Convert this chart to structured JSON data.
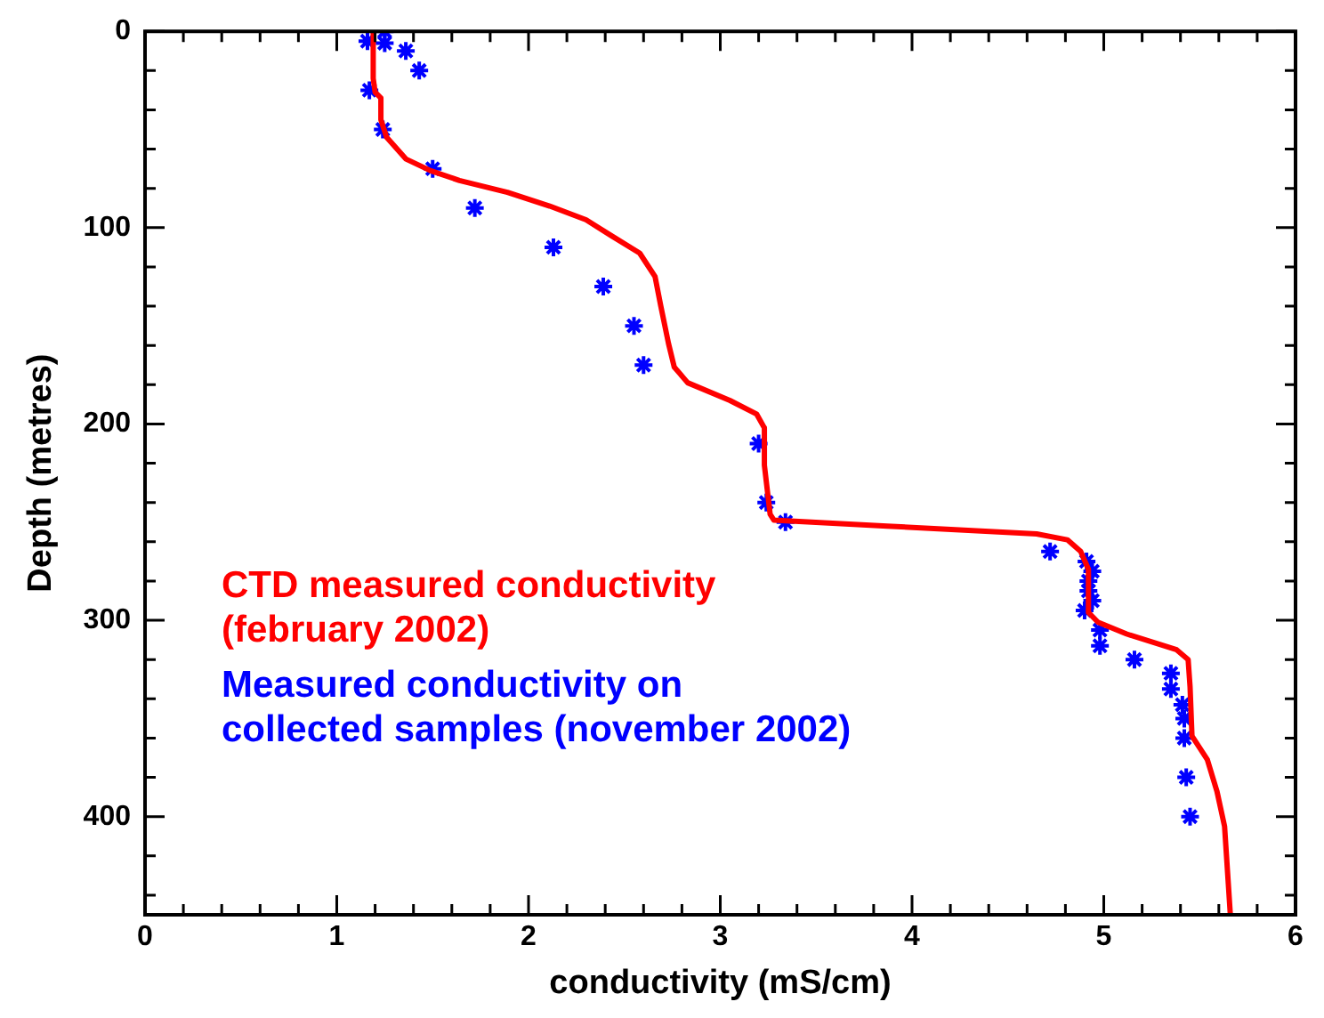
{
  "chart_data": {
    "type": "line",
    "xlabel": "conductivity (mS/cm)",
    "ylabel": "Depth (metres)",
    "xlim": [
      0,
      6
    ],
    "ylim": [
      450,
      0
    ],
    "xticks": [
      0,
      {
        "value": 0.2,
        "label": null
      },
      {
        "value": 0.4,
        "label": null
      },
      {
        "value": 0.6,
        "label": null
      },
      {
        "value": 0.8,
        "label": null
      },
      1,
      {
        "value": 1.2,
        "label": null
      },
      {
        "value": 1.4,
        "label": null
      },
      {
        "value": 1.6,
        "label": null
      },
      {
        "value": 1.8,
        "label": null
      },
      2,
      {
        "value": 2.2,
        "label": null
      },
      {
        "value": 2.4,
        "label": null
      },
      {
        "value": 2.6,
        "label": null
      },
      {
        "value": 2.8,
        "label": null
      },
      3,
      {
        "value": 3.2,
        "label": null
      },
      {
        "value": 3.4,
        "label": null
      },
      {
        "value": 3.6,
        "label": null
      },
      {
        "value": 3.8,
        "label": null
      },
      4,
      {
        "value": 4.2,
        "label": null
      },
      {
        "value": 4.4,
        "label": null
      },
      {
        "value": 4.6,
        "label": null
      },
      {
        "value": 4.8,
        "label": null
      },
      5,
      {
        "value": 5.2,
        "label": null
      },
      {
        "value": 5.4,
        "label": null
      },
      {
        "value": 5.6,
        "label": null
      },
      {
        "value": 5.8,
        "label": null
      },
      6
    ],
    "yticks": [
      0,
      {
        "value": 20,
        "label": null
      },
      {
        "value": 40,
        "label": null
      },
      {
        "value": 60,
        "label": null
      },
      {
        "value": 80,
        "label": null
      },
      100,
      {
        "value": 120,
        "label": null
      },
      {
        "value": 140,
        "label": null
      },
      {
        "value": 160,
        "label": null
      },
      {
        "value": 180,
        "label": null
      },
      200,
      {
        "value": 220,
        "label": null
      },
      {
        "value": 240,
        "label": null
      },
      {
        "value": 260,
        "label": null
      },
      {
        "value": 280,
        "label": null
      },
      300,
      {
        "value": 320,
        "label": null
      },
      {
        "value": 340,
        "label": null
      },
      {
        "value": 360,
        "label": null
      },
      {
        "value": 380,
        "label": null
      },
      400,
      {
        "value": 420,
        "label": null
      },
      {
        "value": 440,
        "label": null
      }
    ],
    "grid": false,
    "legend": false,
    "series": [
      {
        "name": "CTD measured conductivity\n(february 2002)",
        "color": "#ff0000",
        "marker": "none",
        "x": [
          1.19,
          1.19,
          1.2,
          1.23,
          1.23,
          1.26,
          1.36,
          1.49,
          1.64,
          1.89,
          2.11,
          2.3,
          2.43,
          2.58,
          2.66,
          2.69,
          2.73,
          2.76,
          2.83,
          3.05,
          3.19,
          3.23,
          3.23,
          3.26,
          3.28,
          3.87,
          4.65,
          4.81,
          4.88,
          4.92,
          4.92,
          4.97,
          5.12,
          5.38,
          5.44,
          5.45,
          5.46,
          5.54,
          5.59,
          5.63,
          5.66
        ],
        "values": [
          0,
          24,
          31,
          34,
          45,
          54,
          65,
          71,
          76,
          82,
          89,
          96,
          104,
          113,
          125,
          140,
          159,
          171,
          179,
          188,
          195,
          202,
          221,
          246,
          249,
          252,
          256,
          259,
          265,
          274,
          296,
          301,
          307,
          315,
          320,
          334,
          359,
          371,
          387,
          405,
          450
        ]
      },
      {
        "name": "Measured conductivity on\ncollected samples (november 2002)",
        "type": "scatter",
        "color": "#0000ff",
        "marker": "cross",
        "x": [
          1.16,
          1.25,
          1.25,
          1.36,
          1.43,
          1.17,
          1.24,
          1.5,
          1.72,
          2.13,
          2.39,
          2.55,
          2.6,
          3.2,
          3.24,
          3.34,
          4.72,
          4.91,
          4.94,
          4.92,
          4.92,
          4.94,
          4.9,
          4.98,
          4.98,
          5.16,
          5.35,
          5.35,
          5.41,
          5.42,
          5.42,
          5.43,
          5.45
        ],
        "values": [
          5,
          0,
          6,
          10,
          20,
          30,
          50,
          70,
          90,
          110,
          130,
          150,
          170,
          210,
          240,
          250,
          265,
          270,
          275,
          280,
          285,
          290,
          295,
          305,
          313,
          320,
          327,
          335,
          343,
          350,
          360,
          380,
          400
        ]
      }
    ]
  }
}
